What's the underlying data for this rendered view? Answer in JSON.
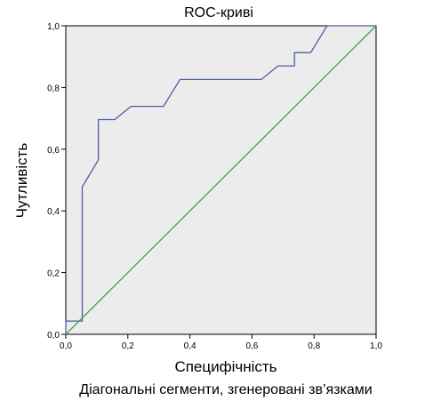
{
  "chart_data": {
    "type": "line",
    "title": "ROC-криві",
    "xlabel": "Специфічність",
    "ylabel": "Чутливість",
    "footnote": "Діагональні сегменти, згенеровані зв’язками",
    "xlim": [
      0,
      1
    ],
    "ylim": [
      0,
      1
    ],
    "x_ticks": [
      "0,0",
      "0,2",
      "0,4",
      "0,6",
      "0,8",
      "1,0"
    ],
    "y_ticks": [
      "0,0",
      "0,2",
      "0,4",
      "0,6",
      "0,8",
      "1,0"
    ],
    "grid": false,
    "legend": "none",
    "colors": {
      "plot_background": "#ececec",
      "roc_line": "#4a5da8",
      "reference_line": "#3aa84a",
      "axis": "#000000"
    },
    "series": [
      {
        "x": [
          0,
          0,
          0.053,
          0.053,
          0.053,
          0.105,
          0.105,
          0.158,
          0.21,
          0.315,
          0.368,
          0.63,
          0.684,
          0.737,
          0.737,
          0.789,
          0.842,
          1.0
        ],
        "y": [
          0,
          0.043,
          0.043,
          0.478,
          0.478,
          0.565,
          0.696,
          0.696,
          0.739,
          0.739,
          0.826,
          0.826,
          0.87,
          0.87,
          0.913,
          0.913,
          1.0,
          1.0
        ]
      },
      {
        "x": [
          0,
          1
        ],
        "y": [
          0,
          1
        ]
      }
    ]
  }
}
